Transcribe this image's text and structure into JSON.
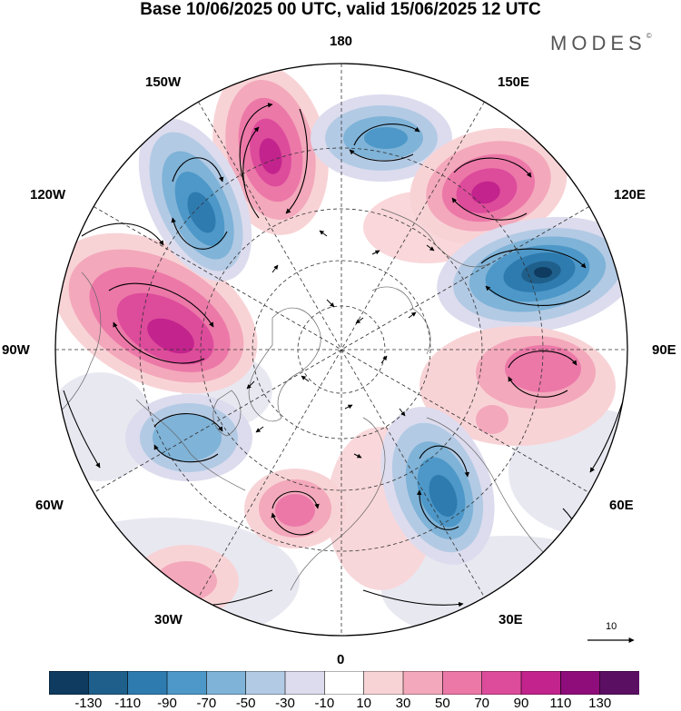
{
  "title": "Base 10/06/2025 00 UTC, valid 15/06/2025 12 UTC",
  "brand": "MODES",
  "brand_mark": "©",
  "longitude_labels": {
    "n180": "180",
    "w150": "150W",
    "e150": "150E",
    "w120": "120W",
    "e120": "120E",
    "w90": "90W",
    "e90": "90E",
    "w60": "60W",
    "e60": "60E",
    "w30": "30W",
    "e30": "30E",
    "s0": "0"
  },
  "vector_reference": "10",
  "colorbar": {
    "colors": [
      "#0e3b5f",
      "#1f5f8b",
      "#2e7bb0",
      "#4d98c8",
      "#7fb3d8",
      "#b3cae4",
      "#dcdcee",
      "#ffffff",
      "#f8d3d6",
      "#f3a8bb",
      "#ec78a8",
      "#dd4b9b",
      "#c2238c",
      "#8e0d7a",
      "#5b0f63"
    ],
    "tick_labels": [
      "-130",
      "-110",
      "-90",
      "-70",
      "-50",
      "-30",
      "-10",
      "10",
      "30",
      "50",
      "70",
      "90",
      "110",
      "130"
    ]
  },
  "anomaly_centers": [
    {
      "lon_label": "150W",
      "sign": "positive"
    },
    {
      "lon_label": "180",
      "sign": "negative"
    },
    {
      "lon_label": "150E",
      "sign": "positive"
    },
    {
      "lon_label": "120E",
      "sign": "negative"
    },
    {
      "lon_label": "90E",
      "sign": "positive"
    },
    {
      "lon_label": "60E",
      "sign": "negative"
    },
    {
      "lon_label": "30W",
      "sign": "positive"
    },
    {
      "lon_label": "60W",
      "sign": "negative"
    },
    {
      "lon_label": "90W",
      "sign": "positive"
    },
    {
      "lon_label": "120W",
      "sign": "negative"
    }
  ]
}
